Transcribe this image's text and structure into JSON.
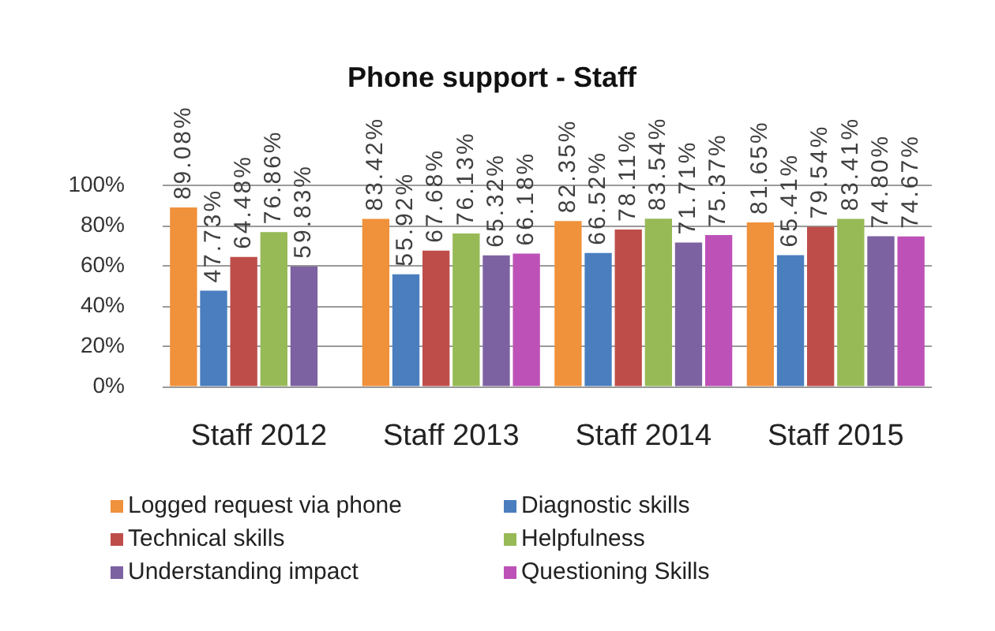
{
  "chart_data": {
    "type": "bar",
    "title": "Phone support - Staff",
    "categories": [
      "Staff 2012",
      "Staff 2013",
      "Staff 2014",
      "Staff 2015"
    ],
    "series": [
      {
        "name": "Logged request via phone",
        "color": "#f0913b",
        "values": [
          89.08,
          83.42,
          82.35,
          81.65
        ],
        "value_labels": [
          "89.08%",
          "83.42%",
          "82.35%",
          "81.65%"
        ]
      },
      {
        "name": "Diagnostic skills",
        "color": "#4a7ebf",
        "values": [
          47.73,
          55.92,
          66.52,
          65.41
        ],
        "value_labels": [
          "47.73%",
          "55.92%",
          "66.52%",
          "65.41%"
        ]
      },
      {
        "name": "Technical skills",
        "color": "#be4d4a",
        "values": [
          64.48,
          67.68,
          78.11,
          79.54
        ],
        "value_labels": [
          "64.48%",
          "67.68%",
          "78.11%",
          "79.54%"
        ]
      },
      {
        "name": "Helpfulness",
        "color": "#97ba57",
        "values": [
          76.86,
          76.13,
          83.54,
          83.41
        ],
        "value_labels": [
          "76.86%",
          "76.13%",
          "83.54%",
          "83.41%"
        ]
      },
      {
        "name": "Understanding impact",
        "color": "#7d62a1",
        "values": [
          59.83,
          65.32,
          71.71,
          74.8
        ],
        "value_labels": [
          "59.83%",
          "65.32%",
          "71.71%",
          "74.80%"
        ]
      },
      {
        "name": "Questioning Skills",
        "color": "#bd51b7",
        "values": [
          null,
          66.18,
          75.37,
          74.67
        ],
        "value_labels": [
          null,
          "66.18%",
          "75.37%",
          "74.67%"
        ]
      }
    ],
    "ylim": [
      0,
      100
    ],
    "yticks": [
      {
        "value": 0,
        "label": "0%"
      },
      {
        "value": 20,
        "label": "20%"
      },
      {
        "value": 40,
        "label": "40%"
      },
      {
        "value": 60,
        "label": "60%"
      },
      {
        "value": 80,
        "label": "80%"
      },
      {
        "value": 100,
        "label": "100%"
      }
    ],
    "grid": "y",
    "legend": "bottom"
  }
}
